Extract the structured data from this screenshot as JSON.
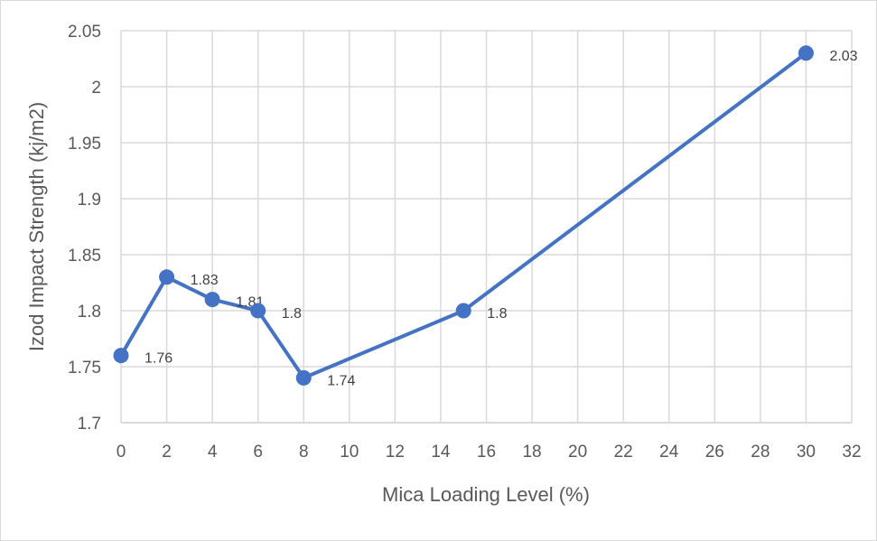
{
  "chart_data": {
    "type": "line",
    "title": "",
    "xlabel": "Mica Loading Level (%)",
    "ylabel": "Izod Impact Strength (kj/m2)",
    "xlim": [
      0,
      32
    ],
    "ylim": [
      1.7,
      2.05
    ],
    "xticks": [
      "0",
      "2",
      "4",
      "6",
      "8",
      "10",
      "12",
      "14",
      "16",
      "18",
      "20",
      "22",
      "24",
      "26",
      "28",
      "30",
      "32"
    ],
    "yticks": [
      "1.7",
      "1.75",
      "1.8",
      "1.85",
      "1.9",
      "1.95",
      "2",
      "2.05"
    ],
    "grid": true,
    "legend": "none",
    "color": "#4472C4",
    "series": [
      {
        "x": [
          0,
          2,
          4,
          6,
          8,
          15,
          30
        ],
        "y": [
          1.76,
          1.83,
          1.81,
          1.8,
          1.74,
          1.8,
          2.03
        ],
        "labels": [
          "1.76",
          "1.83",
          "1.81",
          "1.8",
          "1.74",
          "1.8",
          "2.03"
        ]
      }
    ]
  }
}
